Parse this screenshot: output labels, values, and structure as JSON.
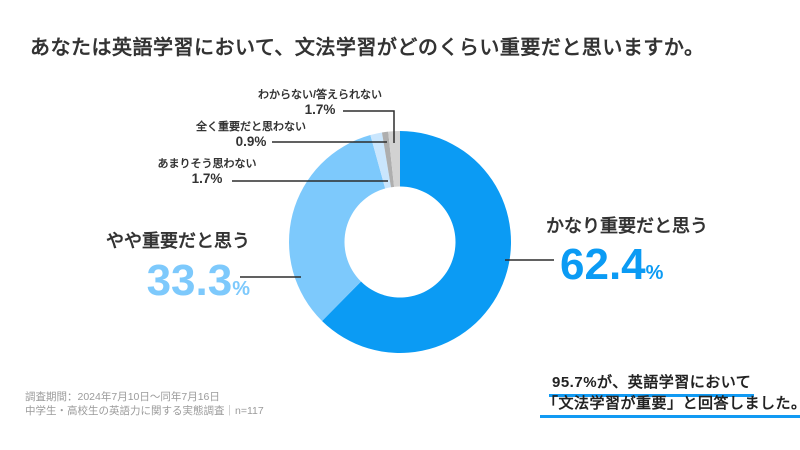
{
  "title": "あなたは英語学習において、文法学習がどのくらい重要だと思いますか。",
  "chart_data": {
    "type": "donut",
    "title": "あなたは英語学習において、文法学習がどのくらい重要だと思いますか。",
    "unit": "%",
    "start_angle_deg": 0,
    "direction": "clockwise",
    "inner_radius_ratio": 0.5,
    "legend_position": "callout-labels",
    "segments": [
      {
        "label": "かなり重要だと思う",
        "value": 62.4,
        "color": "#0b9bf4"
      },
      {
        "label": "やや重要だと思う",
        "value": 33.3,
        "color": "#7dc9fc"
      },
      {
        "label": "あまりそう思わない",
        "value": 1.7,
        "color": "#cae6fd"
      },
      {
        "label": "全く重要だと思わない",
        "value": 0.9,
        "color": "#aeaeae"
      },
      {
        "label": "わからない/答えられない",
        "value": 1.7,
        "color": "#d2d2d2"
      }
    ]
  },
  "callouts": {
    "primary": {
      "label": "かなり重要だと思う",
      "value": "62.4",
      "unit": "%"
    },
    "secondary": {
      "label": "やや重要だと思う",
      "value": "33.3",
      "unit": "%"
    },
    "minor": [
      {
        "label": "わからない/答えられない",
        "value": "1.7%"
      },
      {
        "label": "全く重要だと思わない",
        "value": "0.9%"
      },
      {
        "label": "あまりそう思わない",
        "value": "1.7%"
      }
    ]
  },
  "annotation": {
    "line1": "95.7%が、英語学習において",
    "line2": "「文法学習が重要」と回答しました。"
  },
  "footer": {
    "line1": "調査期間：2024年7月10日〜同年7月16日",
    "line2": "中学生・高校生の英語力に関する実態調査｜n=117"
  },
  "colors": {
    "primary_blue": "#0b9bf4",
    "light_blue": "#7dc9fc",
    "pale_blue": "#cae6fd",
    "gray": "#aeaeae",
    "light_gray": "#d2d2d2",
    "leader_line": "#2d2d2d",
    "underline_blue": "#119af3",
    "text_dark": "#333333",
    "text_gray": "#9b9b9b",
    "background": "#ffffff"
  }
}
